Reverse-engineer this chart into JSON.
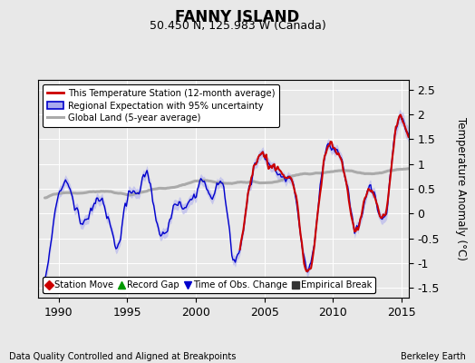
{
  "title": "FANNY ISLAND",
  "subtitle": "50.450 N, 125.983 W (Canada)",
  "ylabel": "Temperature Anomaly (°C)",
  "xlabel_left": "Data Quality Controlled and Aligned at Breakpoints",
  "xlabel_right": "Berkeley Earth",
  "ylim": [
    -1.7,
    2.7
  ],
  "xlim": [
    1988.5,
    2015.5
  ],
  "xticks": [
    1990,
    1995,
    2000,
    2005,
    2010,
    2015
  ],
  "yticks": [
    -1.5,
    -1.0,
    -0.5,
    0,
    0.5,
    1.0,
    1.5,
    2.0,
    2.5
  ],
  "red_color": "#CC0000",
  "blue_color": "#0000CC",
  "blue_fill_color": "#AAAAEE",
  "gray_color": "#AAAAAA",
  "bg_color": "#E8E8E8",
  "legend_station_move_color": "#CC0000",
  "legend_record_gap_color": "#009900",
  "legend_obs_change_color": "#0000CC",
  "legend_empirical_break_color": "#333333"
}
